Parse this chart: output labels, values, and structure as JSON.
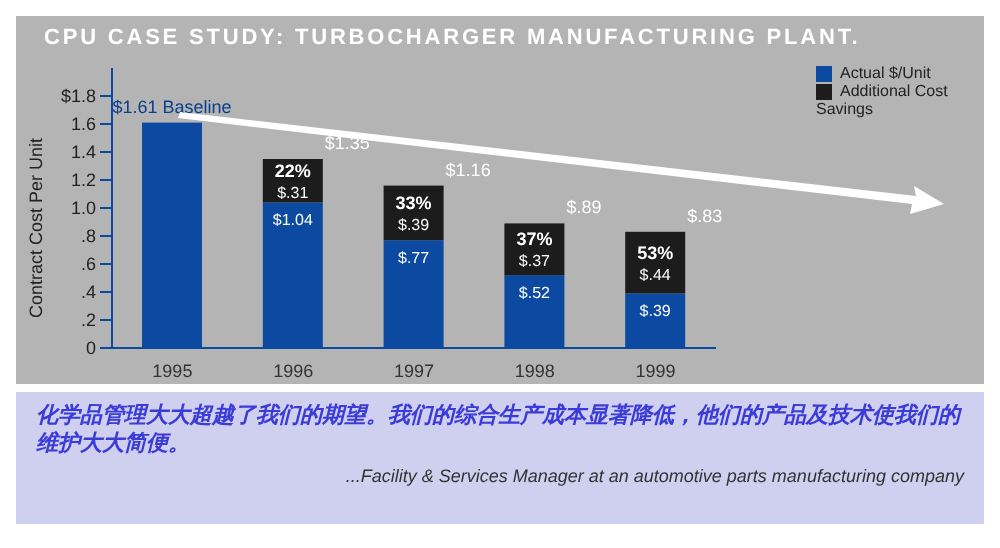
{
  "chart_data": {
    "type": "bar",
    "stacked": true,
    "title": "CPU CASE STUDY: TURBOCHARGER MANUFACTURING PLANT.",
    "ylabel": "Contract Cost Per Unit",
    "categories": [
      "1995",
      "1996",
      "1997",
      "1998",
      "1999"
    ],
    "series": [
      {
        "name": "Actual $/Unit",
        "color": "#0b4aa0",
        "values": [
          1.61,
          1.04,
          0.77,
          0.52,
          0.39
        ],
        "value_labels": [
          "$1.61 Baseline",
          "$1.04",
          "$.77",
          "$.52",
          "$.39"
        ]
      },
      {
        "name": "Additional Cost Savings",
        "color": "#1c1c1c",
        "values": [
          null,
          0.31,
          0.39,
          0.37,
          0.44
        ],
        "value_labels": [
          null,
          "$.31",
          "$.39",
          "$.37",
          "$.44"
        ]
      }
    ],
    "totals": [
      null,
      "$1.35",
      "$1.16",
      "$.89",
      "$.83"
    ],
    "ylim": [
      0,
      2.0
    ],
    "yticks": [
      {
        "value": 0,
        "label": "0"
      },
      {
        "value": 0.2,
        "label": ".2"
      },
      {
        "value": 0.4,
        "label": ".4"
      },
      {
        "value": 0.6,
        "label": ".6"
      },
      {
        "value": 0.8,
        "label": ".8"
      },
      {
        "value": 1.0,
        "label": "1.0"
      },
      1.2,
      1.4,
      1.6,
      {
        "value": 1.8,
        "label": "$1.8"
      }
    ],
    "legend": "top right",
    "annotations": [
      "22%",
      "33%",
      "37%",
      "53%",
      "化学品管理大大超越了我们的期望。我们的综合生产成本显著降低，他们的产品及技术使我们的维护大大简便。",
      "...Facility & Services Manager at an automotive parts manufacturing company"
    ]
  }
}
